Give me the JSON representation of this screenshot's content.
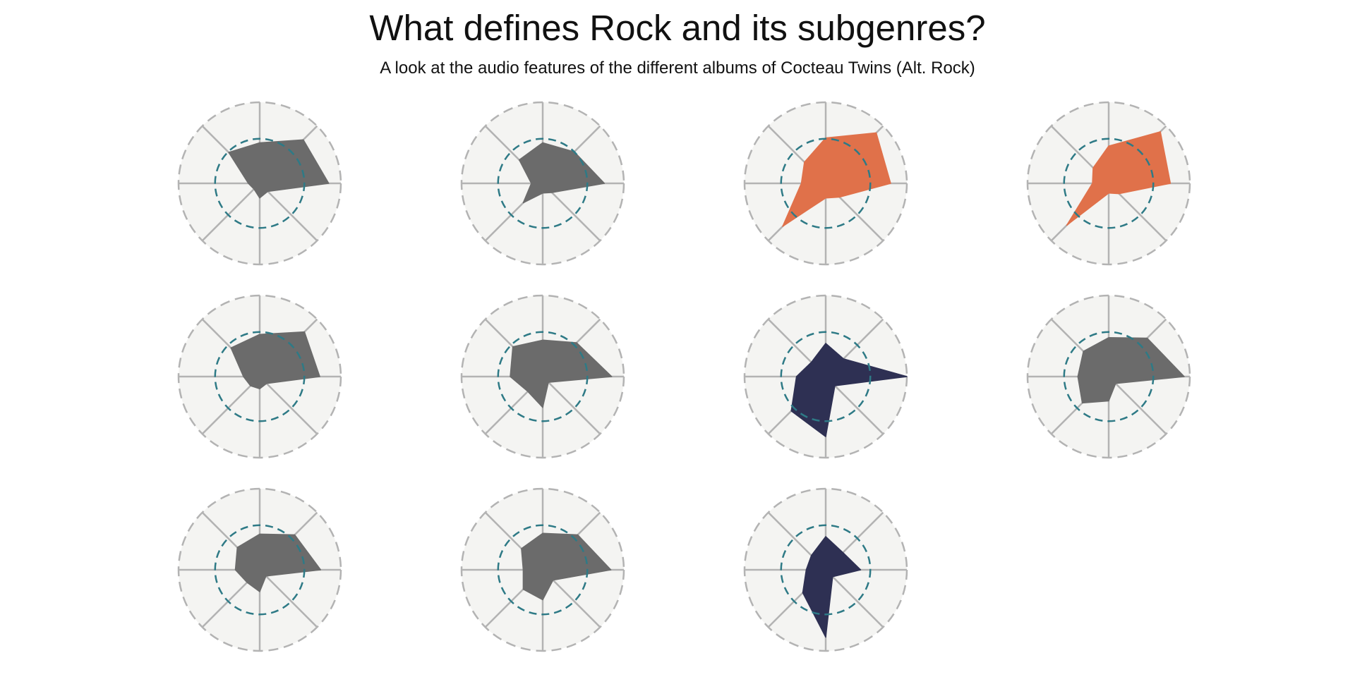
{
  "header": {
    "title": "What defines Rock and its subgenres?",
    "subtitle": "A look at the audio features of the different albums of Cocteau Twins (Alt. Rock)"
  },
  "colors": {
    "background_disc": "#f4f4f2",
    "axis_line": "#b3b3b3",
    "reference_ring": "#2e7a86",
    "default_fill": "#6b6b6b"
  },
  "chart_data": {
    "type": "radar",
    "grid": "4 columns x 3 rows of small-multiple radar charts",
    "axes_count": 8,
    "axis_angles_deg": [
      0,
      45,
      90,
      135,
      180,
      225,
      270,
      315
    ],
    "value_range": [
      0,
      1
    ],
    "reference_ring_value": 0.55,
    "color_groups": {
      "gray": "#6b6b6b",
      "orange": "#e0714a",
      "navy": "#2e3053"
    },
    "series": [
      {
        "color_group": "gray",
        "values": [
          0.85,
          0.76,
          0.5,
          0.54,
          0.14,
          0.1,
          0.18,
          0.14
        ]
      },
      {
        "color_group": "gray",
        "values": [
          0.76,
          0.55,
          0.5,
          0.41,
          0.14,
          0.34,
          0.12,
          0.16
        ]
      },
      {
        "color_group": "orange",
        "values": [
          0.8,
          0.88,
          0.56,
          0.37,
          0.3,
          0.75,
          0.18,
          0.24
        ]
      },
      {
        "color_group": "orange",
        "values": [
          0.76,
          0.9,
          0.46,
          0.27,
          0.2,
          0.73,
          0.12,
          0.18
        ]
      },
      {
        "color_group": "gray",
        "values": [
          0.74,
          0.78,
          0.52,
          0.5,
          0.2,
          0.16,
          0.15,
          0.12
        ]
      },
      {
        "color_group": "gray",
        "values": [
          0.85,
          0.59,
          0.45,
          0.52,
          0.4,
          0.26,
          0.38,
          0.1
        ]
      },
      {
        "color_group": "navy",
        "values": [
          1.0,
          0.31,
          0.41,
          0.25,
          0.36,
          0.6,
          0.74,
          0.16
        ]
      },
      {
        "color_group": "gray",
        "values": [
          0.93,
          0.67,
          0.48,
          0.44,
          0.38,
          0.46,
          0.3,
          0.12
        ]
      },
      {
        "color_group": "gray",
        "values": [
          0.75,
          0.61,
          0.44,
          0.39,
          0.3,
          0.22,
          0.27,
          0.11
        ]
      },
      {
        "color_group": "gray",
        "values": [
          0.84,
          0.61,
          0.45,
          0.37,
          0.24,
          0.34,
          0.37,
          0.18
        ]
      },
      {
        "color_group": "navy",
        "values": [
          0.43,
          0.3,
          0.41,
          0.25,
          0.24,
          0.4,
          0.83,
          0.12
        ]
      }
    ]
  }
}
